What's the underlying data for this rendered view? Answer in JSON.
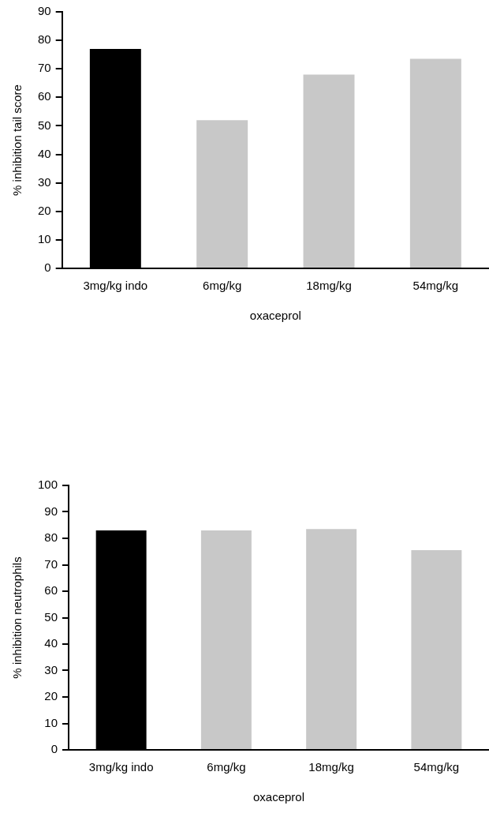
{
  "chart_data": [
    {
      "type": "bar",
      "categories": [
        "3mg/kg indo",
        "6mg/kg",
        "18mg/kg",
        "54mg/kg"
      ],
      "values": [
        77,
        52,
        68,
        73.5
      ],
      "colors": [
        "#000000",
        "#c8c8c8",
        "#c8c8c8",
        "#c8c8c8"
      ],
      "xlabel": "oxaceprol",
      "ylabel": "% inhibition tail score",
      "ylim": [
        0,
        90
      ],
      "yticks": [
        0,
        10,
        20,
        30,
        40,
        50,
        60,
        70,
        80,
        90
      ],
      "grid": false,
      "legend": false
    },
    {
      "type": "bar",
      "categories": [
        "3mg/kg indo",
        "6mg/kg",
        "18mg/kg",
        "54mg/kg"
      ],
      "values": [
        83,
        83,
        83.5,
        75.5
      ],
      "colors": [
        "#000000",
        "#c8c8c8",
        "#c8c8c8",
        "#c8c8c8"
      ],
      "xlabel": "oxaceprol",
      "ylabel": "% inhibition neutrophils",
      "ylim": [
        0,
        100
      ],
      "yticks": [
        0,
        10,
        20,
        30,
        40,
        50,
        60,
        70,
        80,
        90,
        100
      ],
      "grid": false,
      "legend": false
    }
  ]
}
